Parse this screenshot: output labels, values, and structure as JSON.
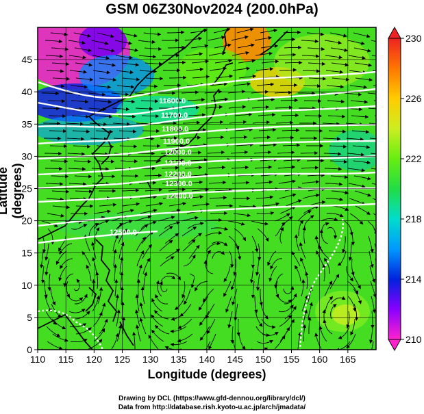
{
  "title": "GSM 06Z30Nov2024 (200.0hPa)",
  "x_axis": {
    "label": "Longitude (degrees)",
    "range": [
      110,
      170
    ],
    "ticks": [
      "110",
      "115",
      "120",
      "125",
      "130",
      "135",
      "140",
      "145",
      "150",
      "155",
      "160",
      "165"
    ]
  },
  "y_axis": {
    "label": "Latitude  (degrees)",
    "range": [
      0,
      50
    ],
    "ticks": [
      "0",
      "5",
      "10",
      "15",
      "20",
      "25",
      "30",
      "35",
      "40",
      "45"
    ]
  },
  "colorbar": {
    "range": [
      210,
      230
    ],
    "ticks": [
      "210",
      "214",
      "218",
      "222",
      "226",
      "230"
    ],
    "colors": [
      "#ff22cc",
      "#8800ff",
      "#0022dd",
      "#0099ff",
      "#00ddcc",
      "#22dd44",
      "#66ee11",
      "#ccee22",
      "#ffcc00",
      "#ff7700",
      "#ee2222"
    ]
  },
  "contour_labels": [
    "11600.0",
    "11700.0",
    "11800.0",
    "11900.0",
    "12000.0",
    "12100.0",
    "12200.0",
    "12300.0",
    "12400.0",
    "12500.0"
  ],
  "credits": [
    "Drawing by DCL (https://www.gfd-dennou.org/library/dcl/)",
    "Data from http://database.rish.kyoto-u.ac.jp/arch/jmadata/"
  ]
}
